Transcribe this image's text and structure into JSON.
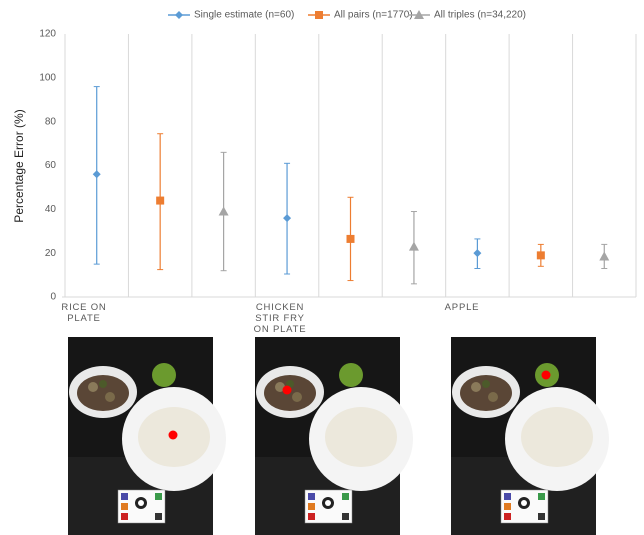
{
  "chart_data": {
    "type": "errorbar",
    "y_label": "Percentage Error (%)",
    "categories": [
      "RICE ON PLATE",
      "CHICKEN STIR FRY ON PLATE",
      "APPLE"
    ],
    "series": [
      {
        "name": "Single estimate (n=60)",
        "color": "#5b9bd5",
        "marker": "diamond",
        "values": [
          56,
          36,
          20
        ],
        "lower": [
          15,
          10.5,
          13
        ],
        "upper": [
          96,
          61,
          26.5
        ]
      },
      {
        "name": "All pairs (n=1770)",
        "color": "#ed7d31",
        "marker": "square",
        "values": [
          44,
          26.5,
          19
        ],
        "lower": [
          12.5,
          7.5,
          14
        ],
        "upper": [
          74.5,
          45.5,
          24
        ]
      },
      {
        "name": "All triples (n=34,220)",
        "color": "#a5a5a5",
        "marker": "triangle",
        "values": [
          39,
          23,
          18.5
        ],
        "lower": [
          12,
          6,
          13
        ],
        "upper": [
          66,
          39,
          24
        ]
      }
    ],
    "ylim": [
      0,
      120
    ],
    "yticks": [
      0,
      20,
      40,
      60,
      80,
      100,
      120
    ],
    "grid": true
  }
}
